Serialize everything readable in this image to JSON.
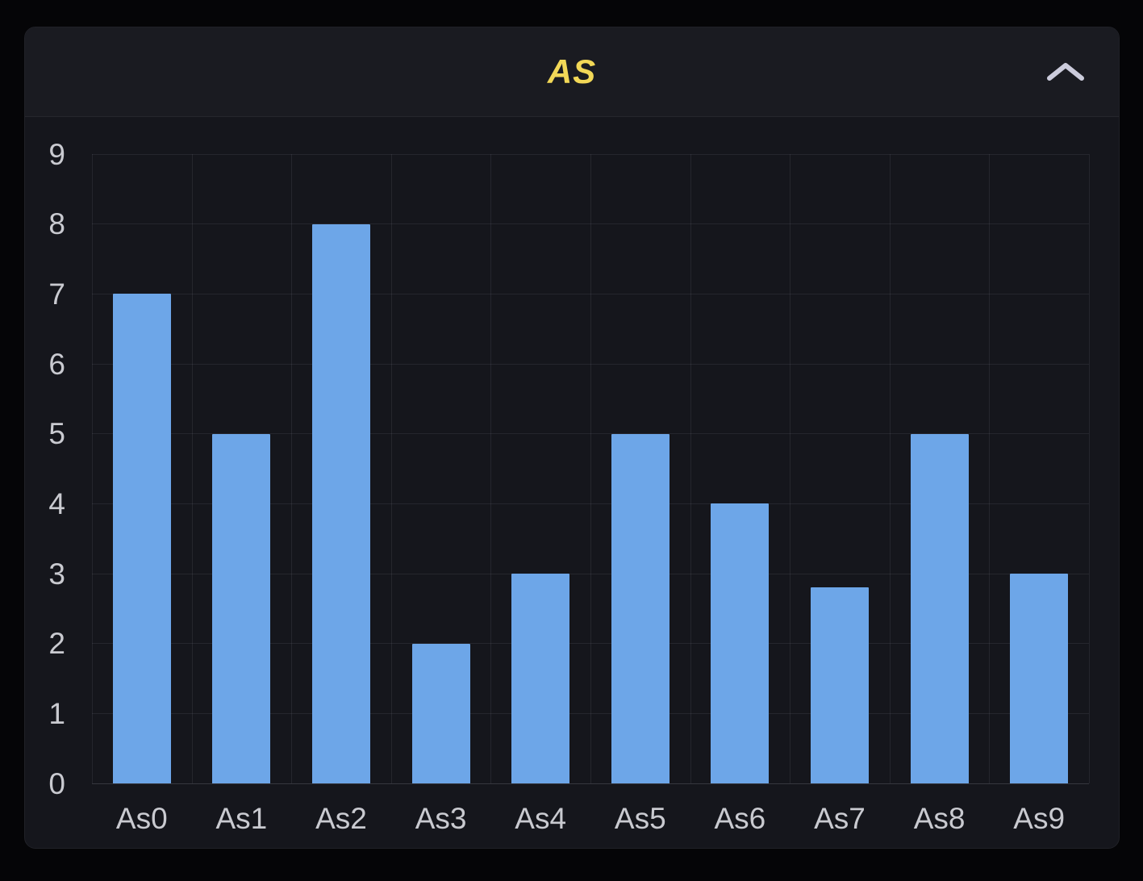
{
  "panel": {
    "title": "AS",
    "collapse_icon": "chevron-up"
  },
  "colors": {
    "page_bg": "#050507",
    "panel_bg": "#15161c",
    "header_bg": "#1a1b21",
    "divider": "#26272d",
    "title_text": "#f2d857",
    "tick_text": "#c9cad0",
    "bar": "#6da6e8",
    "grid": "rgba(204,204,220,0.09)",
    "axis_baseline": "rgba(204,204,220,0.18)",
    "chevron": "#ccccdc"
  },
  "chart_data": {
    "type": "bar",
    "title": "AS",
    "categories": [
      "As0",
      "As1",
      "As2",
      "As3",
      "As4",
      "As5",
      "As6",
      "As7",
      "As8",
      "As9"
    ],
    "values": [
      7,
      5,
      8,
      2,
      3,
      5,
      4,
      2.8,
      5,
      3
    ],
    "xlabel": "",
    "ylabel": "",
    "ylim": [
      0,
      9
    ],
    "y_ticks": [
      0,
      1,
      2,
      3,
      4,
      5,
      6,
      7,
      8,
      9
    ],
    "grid": true,
    "legend": false,
    "bar_color": "#6da6e8"
  }
}
